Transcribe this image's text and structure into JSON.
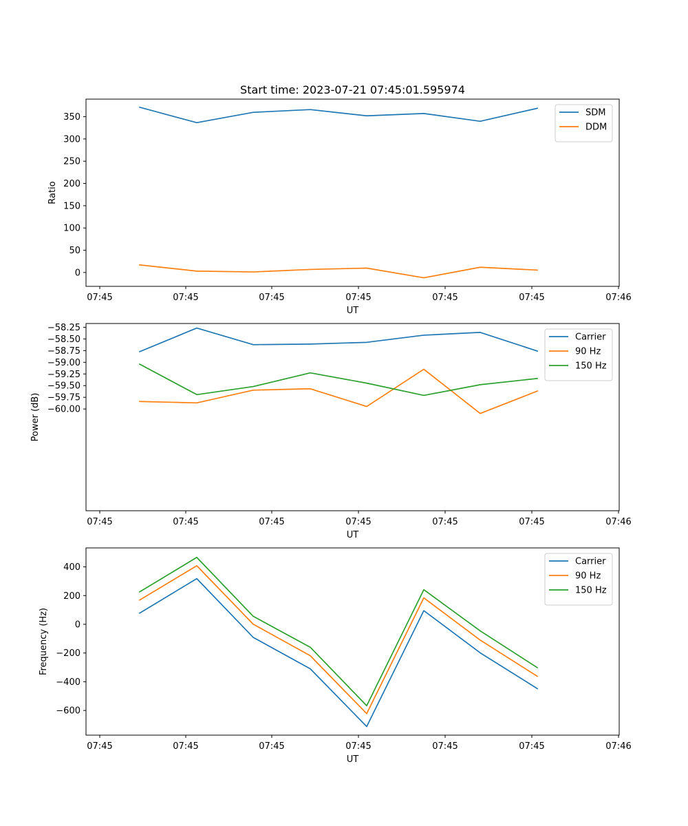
{
  "chart_data": [
    {
      "type": "line",
      "title": "Start time: 2023-07-21 07:45:01.595974",
      "xlabel": "UT",
      "ylabel": "Ratio",
      "x_tick_labels": [
        "07:45",
        "07:45",
        "07:45",
        "07:45",
        "07:45",
        "07:45",
        "07:46"
      ],
      "y_ticks": [
        0,
        50,
        100,
        150,
        200,
        250,
        300,
        350
      ],
      "ylim": [
        -31.1,
        389.5
      ],
      "legend_position": "upper right",
      "series": [
        {
          "name": "SDM",
          "color": "#1f77b4",
          "values": [
            371.2,
            336.6,
            359.8,
            366.0,
            352.0,
            357.2,
            339.7,
            368.9
          ]
        },
        {
          "name": "DDM",
          "color": "#ff7f0e",
          "values": [
            17.1,
            3.1,
            1.3,
            6.9,
            9.9,
            -11.9,
            11.8,
            5.4
          ]
        }
      ]
    },
    {
      "type": "line",
      "title": "",
      "xlabel": "UT",
      "ylabel": "Power (dB)",
      "x_tick_labels": [
        "07:45",
        "07:45",
        "07:45",
        "07:45",
        "07:45",
        "07:45",
        "07:46"
      ],
      "y_ticks": [
        -60.0,
        -59.75,
        -59.5,
        -59.25,
        -59.0,
        -58.75,
        -58.5,
        -58.25
      ],
      "y_tick_labels": [
        "−60.00",
        "−59.75",
        "−59.50",
        "−59.25",
        "−59.00",
        "−58.75",
        "−58.50",
        "−58.25"
      ],
      "ylim": [
        -62.18,
        -58.17
      ],
      "legend_position": "upper right",
      "series": [
        {
          "name": "Carrier",
          "color": "#1f77b4",
          "values": [
            -58.773,
            -58.267,
            -58.623,
            -58.61,
            -58.573,
            -58.42,
            -58.36,
            -58.76
          ]
        },
        {
          "name": "90 Hz",
          "color": "#ff7f0e",
          "values": [
            -59.84,
            -59.87,
            -59.597,
            -59.567,
            -59.947,
            -59.15,
            -60.097,
            -59.617
          ]
        },
        {
          "name": "150 Hz",
          "color": "#2ca02c",
          "values": [
            -59.04,
            -59.693,
            -59.52,
            -59.227,
            -59.447,
            -59.71,
            -59.48,
            -59.347
          ]
        }
      ]
    },
    {
      "type": "line",
      "title": "",
      "xlabel": "UT",
      "ylabel": "Frequency (Hz)",
      "x_tick_labels": [
        "07:45",
        "07:45",
        "07:45",
        "07:45",
        "07:45",
        "07:45",
        "07:46"
      ],
      "y_ticks": [
        -600,
        -400,
        -200,
        0,
        200,
        400
      ],
      "y_tick_labels": [
        "−600",
        "−400",
        "−200",
        "0",
        "200",
        "400"
      ],
      "ylim": [
        -772,
        532
      ],
      "legend_position": "upper right",
      "series": [
        {
          "name": "Carrier",
          "color": "#1f77b4",
          "values": [
            78,
            318,
            -91,
            -310,
            -712,
            95,
            -199,
            -448
          ]
        },
        {
          "name": "90 Hz",
          "color": "#ff7f0e",
          "values": [
            169,
            408,
            1,
            -219,
            -622,
            184,
            -110,
            -362
          ]
        },
        {
          "name": "150 Hz",
          "color": "#2ca02c",
          "values": [
            226,
            466,
            56,
            -160,
            -567,
            241,
            -46,
            -302
          ]
        }
      ]
    }
  ]
}
